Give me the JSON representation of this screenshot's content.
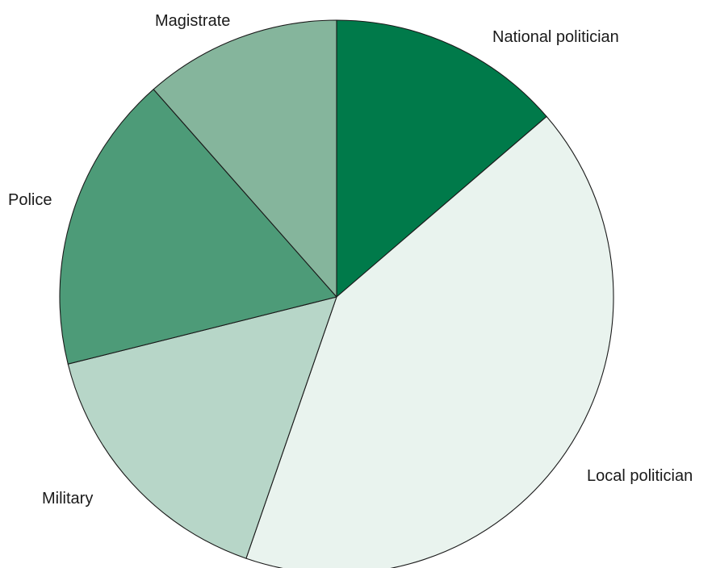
{
  "chart_data": {
    "type": "pie",
    "title": "",
    "slices": [
      {
        "label": "National politician",
        "value": 13.7,
        "color": "#007a4a"
      },
      {
        "label": "Local politician",
        "value": 41.6,
        "color": "#e9f3ee"
      },
      {
        "label": "Military",
        "value": 15.8,
        "color": "#b7d6c8"
      },
      {
        "label": "Police",
        "value": 17.4,
        "color": "#4d9b78"
      },
      {
        "label": "Magistrate",
        "value": 11.5,
        "color": "#85b59c"
      }
    ],
    "start_angle_deg": 0,
    "direction": "clockwise"
  }
}
